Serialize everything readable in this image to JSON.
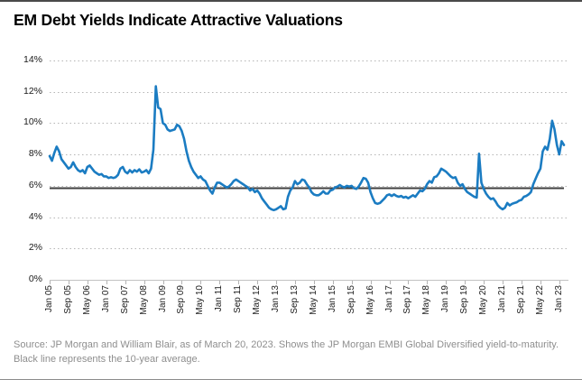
{
  "card": {
    "title": "EM Debt Yields Indicate Attractive Valuations",
    "source": "Source: JP Morgan and William Blair, as of March 20, 2023. Shows the JP Morgan EMBI Global Diversified yield-to-maturity. Black line represents the 10-year average."
  },
  "colors": {
    "line_blue": "#1b7cc2",
    "average_line_black": "#3f3f3f",
    "gridline_gray": "#b5b5b5",
    "axis_gray": "#c2c2c2",
    "label_dark": "#1a1a1a",
    "source_gray": "#8e8e8e",
    "top_border": "#4a4a4a"
  },
  "chart_data": {
    "type": "line",
    "title": "EM Debt Yields Indicate Attractive Valuations",
    "xlabel": "",
    "ylabel": "",
    "ylim": [
      0,
      14
    ],
    "y_tick_step": 2,
    "y_tick_suffix": "%",
    "grid": "dotted horizontal gridlines, solid light-gray x-axis",
    "legend_position": "none",
    "x_tick_labels": [
      "Jan 05",
      "Sep 05",
      "May 06",
      "Jan 07",
      "Sep 07",
      "May 08",
      "Jan 09",
      "Sep 09",
      "May 10",
      "Jan 11",
      "Sep 11",
      "May 12",
      "Jan 13",
      "Sep 13",
      "May 14",
      "Jan 15",
      "Sep 15",
      "May 16",
      "Jan 17",
      "Sep 17",
      "May 18",
      "Jan 19",
      "Sep 19",
      "May 20",
      "Jan 21",
      "Sep 21",
      "May 22",
      "Jan 23"
    ],
    "x_tick_step_months": 8,
    "x_label_rotation_deg": -90,
    "series": [
      {
        "name": "JP Morgan EMBI Global Diversified yield-to-maturity",
        "frequency": "monthly",
        "start": "Jan 2005",
        "end": "Mar 2023",
        "color": "#1b7cc2",
        "values": [
          7.9,
          7.6,
          8.1,
          8.5,
          8.2,
          7.7,
          7.5,
          7.3,
          7.1,
          7.2,
          7.5,
          7.2,
          7.0,
          6.9,
          7.0,
          6.8,
          7.2,
          7.3,
          7.1,
          6.9,
          6.8,
          6.7,
          6.75,
          6.6,
          6.6,
          6.5,
          6.55,
          6.5,
          6.55,
          6.7,
          7.1,
          7.2,
          6.9,
          6.8,
          7.0,
          6.85,
          7.0,
          6.9,
          7.05,
          6.85,
          6.9,
          7.0,
          6.8,
          7.1,
          8.3,
          12.35,
          11.0,
          10.9,
          10.0,
          9.9,
          9.6,
          9.5,
          9.55,
          9.6,
          9.9,
          9.8,
          9.5,
          9.0,
          8.2,
          7.6,
          7.2,
          6.9,
          6.7,
          6.5,
          6.6,
          6.4,
          6.3,
          6.0,
          5.7,
          5.5,
          5.9,
          6.2,
          6.2,
          6.1,
          6.0,
          5.9,
          5.95,
          6.1,
          6.3,
          6.4,
          6.3,
          6.2,
          6.1,
          6.0,
          5.9,
          5.7,
          5.8,
          5.6,
          5.7,
          5.5,
          5.2,
          5.0,
          4.8,
          4.6,
          4.5,
          4.45,
          4.5,
          4.6,
          4.7,
          4.5,
          4.55,
          5.3,
          5.7,
          5.9,
          6.3,
          6.1,
          6.2,
          6.4,
          6.35,
          6.1,
          5.9,
          5.6,
          5.45,
          5.4,
          5.4,
          5.5,
          5.65,
          5.5,
          5.5,
          5.7,
          5.75,
          5.9,
          5.95,
          6.05,
          5.95,
          5.9,
          6.0,
          5.95,
          6.0,
          5.85,
          5.8,
          5.95,
          6.2,
          6.5,
          6.45,
          6.2,
          5.6,
          5.2,
          4.9,
          4.85,
          4.9,
          5.05,
          5.2,
          5.4,
          5.45,
          5.35,
          5.45,
          5.35,
          5.3,
          5.35,
          5.25,
          5.3,
          5.2,
          5.3,
          5.4,
          5.3,
          5.5,
          5.7,
          5.65,
          5.8,
          6.1,
          6.3,
          6.2,
          6.55,
          6.6,
          6.8,
          7.1,
          7.0,
          6.9,
          6.75,
          6.6,
          6.5,
          6.55,
          6.2,
          6.0,
          6.1,
          5.8,
          5.6,
          5.5,
          5.4,
          5.3,
          5.25,
          8.05,
          6.2,
          5.8,
          5.5,
          5.3,
          5.15,
          5.2,
          5.0,
          4.75,
          4.6,
          4.5,
          4.6,
          4.9,
          4.75,
          4.85,
          4.9,
          4.95,
          5.05,
          5.1,
          5.3,
          5.35,
          5.45,
          5.6,
          6.1,
          6.45,
          6.8,
          7.1,
          8.2,
          8.5,
          8.3,
          9.0,
          10.15,
          9.6,
          8.6,
          8.0,
          8.85,
          8.6
        ]
      }
    ],
    "average_line": {
      "label": "10-year average",
      "value": 5.85,
      "color": "#3f3f3f"
    }
  }
}
